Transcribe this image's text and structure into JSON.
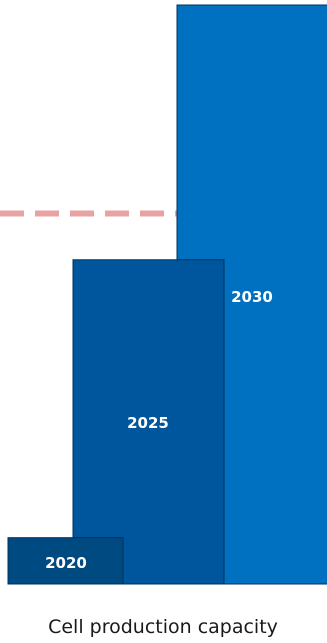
{
  "chart_data": {
    "type": "bar",
    "categories": [
      "2020",
      "2025",
      "2030"
    ],
    "values": [
      8,
      56,
      100
    ],
    "value_unit": "percent of 2030 capacity (estimated)",
    "xlabel": "Cell production capacity",
    "ylabel": "",
    "ylim": [
      0,
      100
    ],
    "reference_line_value": 64,
    "grid": false,
    "legend": "none",
    "colors": {
      "2020": "#004a82",
      "2025": "#00569c",
      "2030": "#0070c0",
      "outline": "#00305a",
      "reference_line": "#e7a3a3"
    }
  }
}
